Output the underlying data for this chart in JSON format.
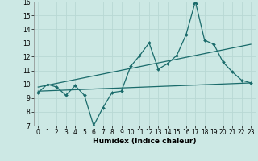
{
  "xlabel": "Humidex (Indice chaleur)",
  "xlim": [
    -0.5,
    23.5
  ],
  "ylim": [
    7,
    16
  ],
  "yticks": [
    7,
    8,
    9,
    10,
    11,
    12,
    13,
    14,
    15,
    16
  ],
  "xticks": [
    0,
    1,
    2,
    3,
    4,
    5,
    6,
    7,
    8,
    9,
    10,
    11,
    12,
    13,
    14,
    15,
    16,
    17,
    18,
    19,
    20,
    21,
    22,
    23
  ],
  "bg_color": "#cce8e4",
  "line_color": "#1a6b6b",
  "grid_color": "#b8d8d4",
  "jagged_x": [
    0,
    1,
    2,
    3,
    4,
    5,
    6,
    7,
    8,
    9,
    10,
    11,
    12,
    13,
    14,
    15,
    16,
    17,
    18,
    19,
    20,
    21,
    22,
    23
  ],
  "jagged_y": [
    9.4,
    10.0,
    9.8,
    9.2,
    9.9,
    9.2,
    7.0,
    8.3,
    9.4,
    9.5,
    11.3,
    12.1,
    13.0,
    11.1,
    11.5,
    12.1,
    13.6,
    16.0,
    13.2,
    12.9,
    11.6,
    10.9,
    10.3,
    10.1
  ],
  "trend1_x": [
    0,
    23
  ],
  "trend1_y": [
    9.5,
    10.1
  ],
  "trend2_x": [
    0,
    23
  ],
  "trend2_y": [
    9.8,
    12.9
  ],
  "tick_fontsize": 5.5,
  "xlabel_fontsize": 6.5
}
